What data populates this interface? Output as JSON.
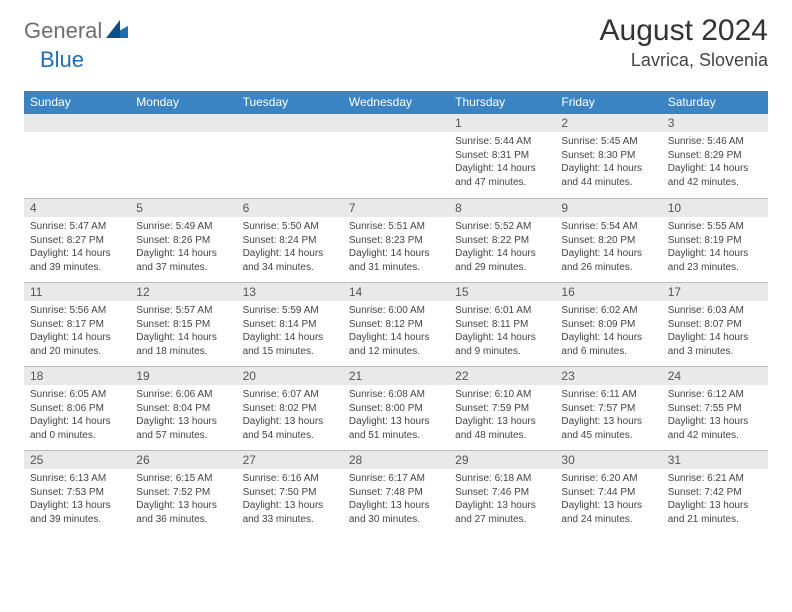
{
  "logo": {
    "text1": "General",
    "text2": "Blue"
  },
  "title": "August 2024",
  "location": "Lavrica, Slovenia",
  "colors": {
    "header_bg": "#3b84c4",
    "header_fg": "#ffffff",
    "daynum_bg": "#e9e9e9",
    "rule": "#bcbcbc"
  },
  "day_headers": [
    "Sunday",
    "Monday",
    "Tuesday",
    "Wednesday",
    "Thursday",
    "Friday",
    "Saturday"
  ],
  "weeks": [
    [
      {
        "n": "",
        "sr": "",
        "ss": "",
        "dl": ""
      },
      {
        "n": "",
        "sr": "",
        "ss": "",
        "dl": ""
      },
      {
        "n": "",
        "sr": "",
        "ss": "",
        "dl": ""
      },
      {
        "n": "",
        "sr": "",
        "ss": "",
        "dl": ""
      },
      {
        "n": "1",
        "sr": "Sunrise: 5:44 AM",
        "ss": "Sunset: 8:31 PM",
        "dl": "Daylight: 14 hours and 47 minutes."
      },
      {
        "n": "2",
        "sr": "Sunrise: 5:45 AM",
        "ss": "Sunset: 8:30 PM",
        "dl": "Daylight: 14 hours and 44 minutes."
      },
      {
        "n": "3",
        "sr": "Sunrise: 5:46 AM",
        "ss": "Sunset: 8:29 PM",
        "dl": "Daylight: 14 hours and 42 minutes."
      }
    ],
    [
      {
        "n": "4",
        "sr": "Sunrise: 5:47 AM",
        "ss": "Sunset: 8:27 PM",
        "dl": "Daylight: 14 hours and 39 minutes."
      },
      {
        "n": "5",
        "sr": "Sunrise: 5:49 AM",
        "ss": "Sunset: 8:26 PM",
        "dl": "Daylight: 14 hours and 37 minutes."
      },
      {
        "n": "6",
        "sr": "Sunrise: 5:50 AM",
        "ss": "Sunset: 8:24 PM",
        "dl": "Daylight: 14 hours and 34 minutes."
      },
      {
        "n": "7",
        "sr": "Sunrise: 5:51 AM",
        "ss": "Sunset: 8:23 PM",
        "dl": "Daylight: 14 hours and 31 minutes."
      },
      {
        "n": "8",
        "sr": "Sunrise: 5:52 AM",
        "ss": "Sunset: 8:22 PM",
        "dl": "Daylight: 14 hours and 29 minutes."
      },
      {
        "n": "9",
        "sr": "Sunrise: 5:54 AM",
        "ss": "Sunset: 8:20 PM",
        "dl": "Daylight: 14 hours and 26 minutes."
      },
      {
        "n": "10",
        "sr": "Sunrise: 5:55 AM",
        "ss": "Sunset: 8:19 PM",
        "dl": "Daylight: 14 hours and 23 minutes."
      }
    ],
    [
      {
        "n": "11",
        "sr": "Sunrise: 5:56 AM",
        "ss": "Sunset: 8:17 PM",
        "dl": "Daylight: 14 hours and 20 minutes."
      },
      {
        "n": "12",
        "sr": "Sunrise: 5:57 AM",
        "ss": "Sunset: 8:15 PM",
        "dl": "Daylight: 14 hours and 18 minutes."
      },
      {
        "n": "13",
        "sr": "Sunrise: 5:59 AM",
        "ss": "Sunset: 8:14 PM",
        "dl": "Daylight: 14 hours and 15 minutes."
      },
      {
        "n": "14",
        "sr": "Sunrise: 6:00 AM",
        "ss": "Sunset: 8:12 PM",
        "dl": "Daylight: 14 hours and 12 minutes."
      },
      {
        "n": "15",
        "sr": "Sunrise: 6:01 AM",
        "ss": "Sunset: 8:11 PM",
        "dl": "Daylight: 14 hours and 9 minutes."
      },
      {
        "n": "16",
        "sr": "Sunrise: 6:02 AM",
        "ss": "Sunset: 8:09 PM",
        "dl": "Daylight: 14 hours and 6 minutes."
      },
      {
        "n": "17",
        "sr": "Sunrise: 6:03 AM",
        "ss": "Sunset: 8:07 PM",
        "dl": "Daylight: 14 hours and 3 minutes."
      }
    ],
    [
      {
        "n": "18",
        "sr": "Sunrise: 6:05 AM",
        "ss": "Sunset: 8:06 PM",
        "dl": "Daylight: 14 hours and 0 minutes."
      },
      {
        "n": "19",
        "sr": "Sunrise: 6:06 AM",
        "ss": "Sunset: 8:04 PM",
        "dl": "Daylight: 13 hours and 57 minutes."
      },
      {
        "n": "20",
        "sr": "Sunrise: 6:07 AM",
        "ss": "Sunset: 8:02 PM",
        "dl": "Daylight: 13 hours and 54 minutes."
      },
      {
        "n": "21",
        "sr": "Sunrise: 6:08 AM",
        "ss": "Sunset: 8:00 PM",
        "dl": "Daylight: 13 hours and 51 minutes."
      },
      {
        "n": "22",
        "sr": "Sunrise: 6:10 AM",
        "ss": "Sunset: 7:59 PM",
        "dl": "Daylight: 13 hours and 48 minutes."
      },
      {
        "n": "23",
        "sr": "Sunrise: 6:11 AM",
        "ss": "Sunset: 7:57 PM",
        "dl": "Daylight: 13 hours and 45 minutes."
      },
      {
        "n": "24",
        "sr": "Sunrise: 6:12 AM",
        "ss": "Sunset: 7:55 PM",
        "dl": "Daylight: 13 hours and 42 minutes."
      }
    ],
    [
      {
        "n": "25",
        "sr": "Sunrise: 6:13 AM",
        "ss": "Sunset: 7:53 PM",
        "dl": "Daylight: 13 hours and 39 minutes."
      },
      {
        "n": "26",
        "sr": "Sunrise: 6:15 AM",
        "ss": "Sunset: 7:52 PM",
        "dl": "Daylight: 13 hours and 36 minutes."
      },
      {
        "n": "27",
        "sr": "Sunrise: 6:16 AM",
        "ss": "Sunset: 7:50 PM",
        "dl": "Daylight: 13 hours and 33 minutes."
      },
      {
        "n": "28",
        "sr": "Sunrise: 6:17 AM",
        "ss": "Sunset: 7:48 PM",
        "dl": "Daylight: 13 hours and 30 minutes."
      },
      {
        "n": "29",
        "sr": "Sunrise: 6:18 AM",
        "ss": "Sunset: 7:46 PM",
        "dl": "Daylight: 13 hours and 27 minutes."
      },
      {
        "n": "30",
        "sr": "Sunrise: 6:20 AM",
        "ss": "Sunset: 7:44 PM",
        "dl": "Daylight: 13 hours and 24 minutes."
      },
      {
        "n": "31",
        "sr": "Sunrise: 6:21 AM",
        "ss": "Sunset: 7:42 PM",
        "dl": "Daylight: 13 hours and 21 minutes."
      }
    ]
  ]
}
